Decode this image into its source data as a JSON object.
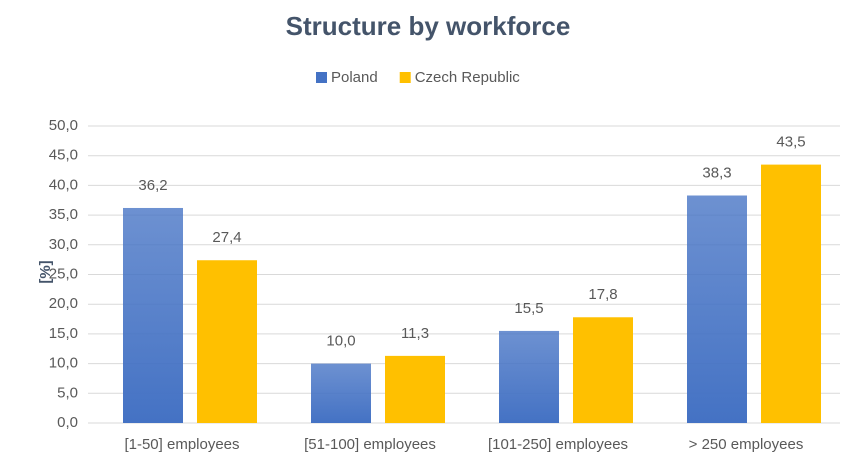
{
  "chart_data": {
    "type": "bar",
    "title": "Structure by workforce",
    "y_label": "[%]",
    "categories": [
      "[1-50] employees",
      "[51-100] employees",
      "[101-250] employees",
      "> 250 employees"
    ],
    "series": [
      {
        "name": "Poland",
        "color": "#4472c4",
        "values": [
          36.2,
          10.0,
          15.5,
          38.3
        ],
        "value_labels": [
          "36,2",
          "10,0",
          "15,5",
          "38,3"
        ]
      },
      {
        "name": "Czech Republic",
        "color": "#ffc000",
        "values": [
          27.4,
          11.3,
          17.8,
          43.5
        ],
        "value_labels": [
          "27,4",
          "11,3",
          "17,8",
          "43,5"
        ]
      }
    ],
    "ylim": [
      0,
      50
    ],
    "yticks": [
      {
        "value": 0,
        "label": "0,0"
      },
      {
        "value": 5,
        "label": "5,0"
      },
      {
        "value": 10,
        "label": "10,0"
      },
      {
        "value": 15,
        "label": "15,0"
      },
      {
        "value": 20,
        "label": "20,0"
      },
      {
        "value": 25,
        "label": "25,0"
      },
      {
        "value": 30,
        "label": "30,0"
      },
      {
        "value": 35,
        "label": "35,0"
      },
      {
        "value": 40,
        "label": "40,0"
      },
      {
        "value": 45,
        "label": "45,0"
      },
      {
        "value": 50,
        "label": "50,0"
      }
    ],
    "grid": true,
    "legend": "top"
  }
}
